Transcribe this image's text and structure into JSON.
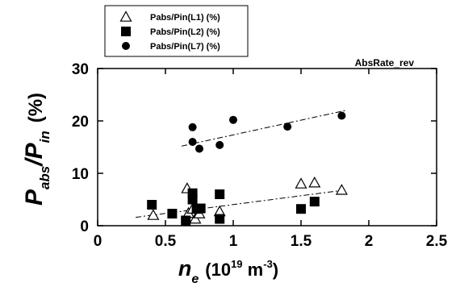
{
  "chart_data": {
    "type": "scatter",
    "title": "",
    "annotation": "AbsRate_rev",
    "xlabel": {
      "symbol": "n",
      "subscript": "e",
      "unit_prefix": "(10",
      "unit_exp": "19",
      "unit_mid": " m",
      "unit_exp2": "-3",
      "unit_suffix": ")"
    },
    "ylabel": {
      "p1": "P",
      "sub1": "abs",
      "sep": "/P",
      "sub2": "in",
      "unit": "(%)"
    },
    "xlim": [
      0,
      2.5
    ],
    "ylim": [
      0,
      30
    ],
    "xticks": [
      0,
      0.5,
      1,
      1.5,
      2,
      2.5
    ],
    "xtick_labels": [
      "0",
      "0.5",
      "1",
      "1.5",
      "2",
      "2.5"
    ],
    "yticks": [
      0,
      10,
      20,
      30
    ],
    "ytick_labels": [
      "0",
      "10",
      "20",
      "30"
    ],
    "grid": false,
    "legend_position": "top-left",
    "series": [
      {
        "name": "Pabs/Pin(L1) (%)",
        "marker": "open-triangle",
        "points": [
          [
            0.41,
            2.0
          ],
          [
            0.66,
            7.1
          ],
          [
            0.67,
            2.4
          ],
          [
            0.7,
            3.2
          ],
          [
            0.72,
            1.3
          ],
          [
            0.75,
            2.3
          ],
          [
            0.9,
            2.7
          ],
          [
            1.5,
            8.0
          ],
          [
            1.6,
            8.2
          ],
          [
            1.8,
            6.8
          ]
        ]
      },
      {
        "name": "Pabs/Pin(L2) (%)",
        "marker": "filled-square",
        "points": [
          [
            0.4,
            4.0
          ],
          [
            0.55,
            2.3
          ],
          [
            0.65,
            1.0
          ],
          [
            0.7,
            6.2
          ],
          [
            0.7,
            5.0
          ],
          [
            0.73,
            3.2
          ],
          [
            0.76,
            3.3
          ],
          [
            0.9,
            6.0
          ],
          [
            0.9,
            1.3
          ],
          [
            1.5,
            3.2
          ],
          [
            1.6,
            4.6
          ]
        ]
      },
      {
        "name": "Pabs/Pin(L7) (%)",
        "marker": "filled-circle",
        "points": [
          [
            0.7,
            18.8
          ],
          [
            0.7,
            16.0
          ],
          [
            0.75,
            14.7
          ],
          [
            0.9,
            15.4
          ],
          [
            1.0,
            20.2
          ],
          [
            1.4,
            18.9
          ],
          [
            1.8,
            21.0
          ]
        ]
      }
    ],
    "fit_lines": [
      {
        "for": "Pabs/Pin(L1) (%) + Pabs/Pin(L2) (%)",
        "style": "dashed",
        "x": [
          0.28,
          1.82
        ],
        "y": [
          1.6,
          6.8
        ]
      },
      {
        "for": "Pabs/Pin(L7) (%)",
        "style": "dashed",
        "x": [
          0.62,
          1.83
        ],
        "y": [
          15.2,
          22.0
        ]
      }
    ]
  }
}
